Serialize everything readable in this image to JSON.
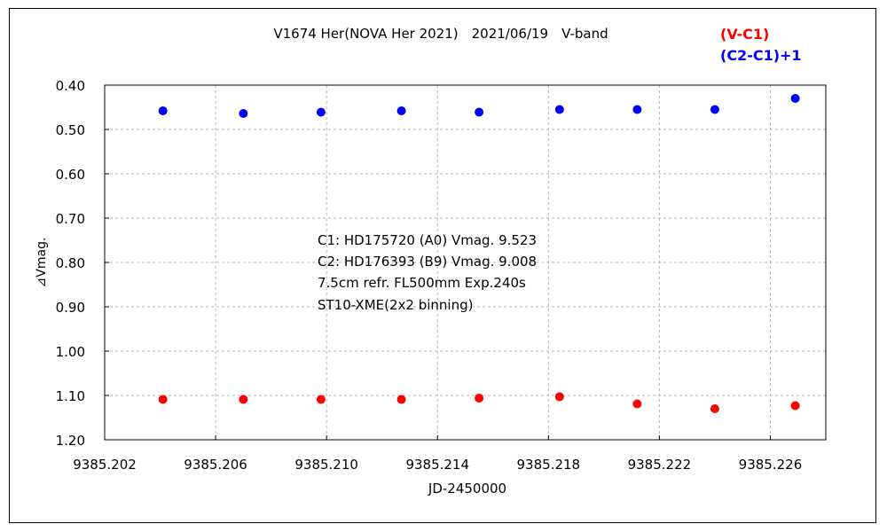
{
  "chart_data": {
    "type": "scatter",
    "title": "V1674 Her(NOVA Her 2021)　2021/06/19　V-band",
    "xlabel": "JD-2450000",
    "ylabel": "⊿Vmag.",
    "xlim": [
      9385.202,
      9385.228
    ],
    "ylim": [
      0.4,
      1.2
    ],
    "y_inverted": true,
    "grid": true,
    "legend_position": "top-right",
    "x_ticks": [
      "9385.202",
      "9385.206",
      "9385.210",
      "9385.214",
      "9385.218",
      "9385.222",
      "9385.226"
    ],
    "y_ticks": [
      "0.40",
      "0.50",
      "0.60",
      "0.70",
      "0.80",
      "0.90",
      "1.00",
      "1.10",
      "1.20"
    ],
    "series": [
      {
        "name": "(V-C1)",
        "color": "#ff0000",
        "x": [
          9385.2041,
          9385.207,
          9385.2098,
          9385.2127,
          9385.2155,
          9385.2184,
          9385.2212,
          9385.224,
          9385.2269
        ],
        "y": [
          1.109,
          1.109,
          1.109,
          1.109,
          1.106,
          1.103,
          1.119,
          1.13,
          1.123
        ]
      },
      {
        "name": "(C2-C1)+1",
        "color": "#0000ff",
        "x": [
          9385.2041,
          9385.207,
          9385.2098,
          9385.2127,
          9385.2155,
          9385.2184,
          9385.2212,
          9385.224,
          9385.2269
        ],
        "y": [
          0.458,
          0.464,
          0.461,
          0.458,
          0.461,
          0.455,
          0.455,
          0.455,
          0.43
        ]
      }
    ],
    "annotations": [
      "C1: HD175720 (A0) Vmag. 9.523",
      "C2: HD176393 (B9) Vmag. 9.008",
      "7.5cm refr. FL500mm  Exp.240s",
      "ST10-XME(2x2 binning)"
    ]
  }
}
